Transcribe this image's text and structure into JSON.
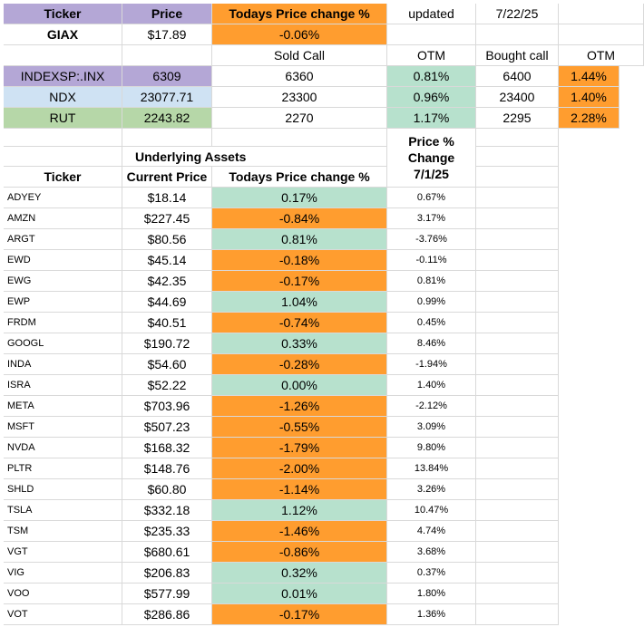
{
  "header": {
    "ticker_label": "Ticker",
    "price_label": "Price",
    "todays_change_label": "Todays Price change %",
    "updated_label": "updated",
    "updated_date": "7/22/25"
  },
  "fund": {
    "ticker": "GIAX",
    "price": "$17.89",
    "change": "-0.06%"
  },
  "options_header": {
    "sold_call": "Sold Call",
    "otm": "OTM",
    "bought_call": "Bought call",
    "otm2": "OTM"
  },
  "indexes": [
    {
      "name": "INDEXSP:.INX",
      "price": "6309",
      "sold_call": "6360",
      "otm": "0.81%",
      "bought_call": "6400",
      "otm2": "1.44%"
    },
    {
      "name": "NDX",
      "price": "23077.71",
      "sold_call": "23300",
      "otm": "0.96%",
      "bought_call": "23400",
      "otm2": "1.40%"
    },
    {
      "name": "RUT",
      "price": "2243.82",
      "sold_call": "2270",
      "otm": "1.17%",
      "bought_call": "2295",
      "otm2": "2.28%"
    }
  ],
  "underlying": {
    "title": "Underlying Assets",
    "col_ticker": "Ticker",
    "col_current_price": "Current Price",
    "col_todays_change": "Todays Price change %",
    "col_change_since": [
      "Price %",
      "Change",
      "7/1/25"
    ],
    "rows": [
      {
        "ticker": "ADYEY",
        "price": "$18.14",
        "change": "0.17%",
        "since": "0.67%",
        "color": "mint"
      },
      {
        "ticker": "AMZN",
        "price": "$227.45",
        "change": "-0.84%",
        "since": "3.17%",
        "color": "orange"
      },
      {
        "ticker": "ARGT",
        "price": "$80.56",
        "change": "0.81%",
        "since": "-3.76%",
        "color": "mint"
      },
      {
        "ticker": "EWD",
        "price": "$45.14",
        "change": "-0.18%",
        "since": "-0.11%",
        "color": "orange"
      },
      {
        "ticker": "EWG",
        "price": "$42.35",
        "change": "-0.17%",
        "since": "0.81%",
        "color": "orange"
      },
      {
        "ticker": "EWP",
        "price": "$44.69",
        "change": "1.04%",
        "since": "0.99%",
        "color": "mint"
      },
      {
        "ticker": "FRDM",
        "price": "$40.51",
        "change": "-0.74%",
        "since": "0.45%",
        "color": "orange"
      },
      {
        "ticker": "GOOGL",
        "price": "$190.72",
        "change": "0.33%",
        "since": "8.46%",
        "color": "mint"
      },
      {
        "ticker": "INDA",
        "price": "$54.60",
        "change": "-0.28%",
        "since": "-1.94%",
        "color": "orange"
      },
      {
        "ticker": "ISRA",
        "price": "$52.22",
        "change": "0.00%",
        "since": "1.40%",
        "color": "mint"
      },
      {
        "ticker": "META",
        "price": "$703.96",
        "change": "-1.26%",
        "since": "-2.12%",
        "color": "orange"
      },
      {
        "ticker": "MSFT",
        "price": "$507.23",
        "change": "-0.55%",
        "since": "3.09%",
        "color": "orange"
      },
      {
        "ticker": "NVDA",
        "price": "$168.32",
        "change": "-1.79%",
        "since": "9.80%",
        "color": "orange"
      },
      {
        "ticker": "PLTR",
        "price": "$148.76",
        "change": "-2.00%",
        "since": "13.84%",
        "color": "orange"
      },
      {
        "ticker": "SHLD",
        "price": "$60.80",
        "change": "-1.14%",
        "since": "3.26%",
        "color": "orange"
      },
      {
        "ticker": "TSLA",
        "price": "$332.18",
        "change": "1.12%",
        "since": "10.47%",
        "color": "mint"
      },
      {
        "ticker": "TSM",
        "price": "$235.33",
        "change": "-1.46%",
        "since": "4.74%",
        "color": "orange"
      },
      {
        "ticker": "VGT",
        "price": "$680.61",
        "change": "-0.86%",
        "since": "3.68%",
        "color": "orange"
      },
      {
        "ticker": "VIG",
        "price": "$206.83",
        "change": "0.32%",
        "since": "0.37%",
        "color": "mint"
      },
      {
        "ticker": "VOO",
        "price": "$577.99",
        "change": "0.01%",
        "since": "1.80%",
        "color": "mint"
      },
      {
        "ticker": "VOT",
        "price": "$286.86",
        "change": "-0.17%",
        "since": "1.36%",
        "color": "orange"
      }
    ]
  }
}
